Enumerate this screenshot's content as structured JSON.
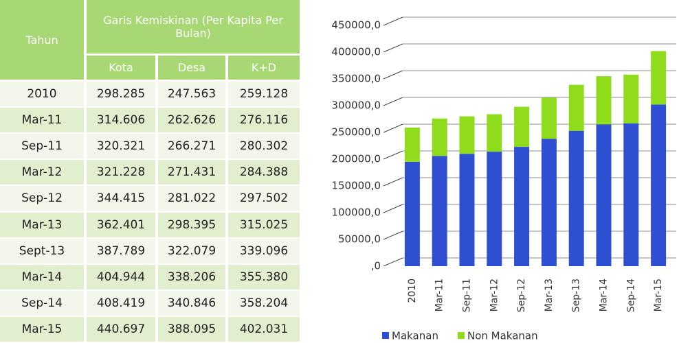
{
  "table": {
    "header": {
      "year": "Tahun",
      "group": "Garis Kemiskinan (Per Kapita Per Bulan)",
      "columns": [
        "Kota",
        "Desa",
        "K+D"
      ]
    },
    "rows": [
      [
        "2010",
        "298.285",
        "247.563",
        "259.128"
      ],
      [
        "Mar-11",
        "314.606",
        "262.626",
        "276.116"
      ],
      [
        "Sep-11",
        "320.321",
        "266.271",
        "280.302"
      ],
      [
        "Mar-12",
        "321.228",
        "271.431",
        "284.388"
      ],
      [
        "Sep-12",
        "344.415",
        "281.022",
        "297.502"
      ],
      [
        "Mar-13",
        "362.401",
        "298.395",
        "315.025"
      ],
      [
        "Sept-13",
        "387.789",
        "322.079",
        "339.096"
      ],
      [
        "Mar-14",
        "404.944",
        "338.206",
        "355.380"
      ],
      [
        "Sep-14",
        "408.419",
        "340.846",
        "358.204"
      ],
      [
        "Mar-15",
        "440.697",
        "388.095",
        "402.031"
      ]
    ]
  },
  "chart_data": {
    "type": "stacked_bar",
    "categories": [
      "2010",
      "Mar-11",
      "Sep-11",
      "Mar-12",
      "Sep-12",
      "Mar-13",
      "Sep-13",
      "Mar-14",
      "Sep-14",
      "Mar-15"
    ],
    "series": [
      {
        "name": "Makanan",
        "color": "#2e4fd1",
        "values": [
          195000,
          206000,
          210000,
          214000,
          223000,
          238000,
          253000,
          265000,
          267000,
          302000
        ]
      },
      {
        "name": "Non Makanan",
        "color": "#8fdc1c",
        "values": [
          64000,
          70000,
          70000,
          70000,
          75000,
          77000,
          86000,
          90000,
          91000,
          100000
        ]
      }
    ],
    "ylim": [
      0,
      450000
    ],
    "yticks": [
      {
        "value": 0,
        "label": ",0"
      },
      {
        "value": 50000,
        "label": "50000,0"
      },
      {
        "value": 100000,
        "label": "100000,0"
      },
      {
        "value": 150000,
        "label": "150000,0"
      },
      {
        "value": 200000,
        "label": "200000,0"
      },
      {
        "value": 250000,
        "label": "250000,0"
      },
      {
        "value": 300000,
        "label": "300000,0"
      },
      {
        "value": 350000,
        "label": "350000,0"
      },
      {
        "value": 400000,
        "label": "400000,0"
      },
      {
        "value": 450000,
        "label": "450000,0"
      }
    ],
    "grid": true,
    "legend": "bottom"
  }
}
